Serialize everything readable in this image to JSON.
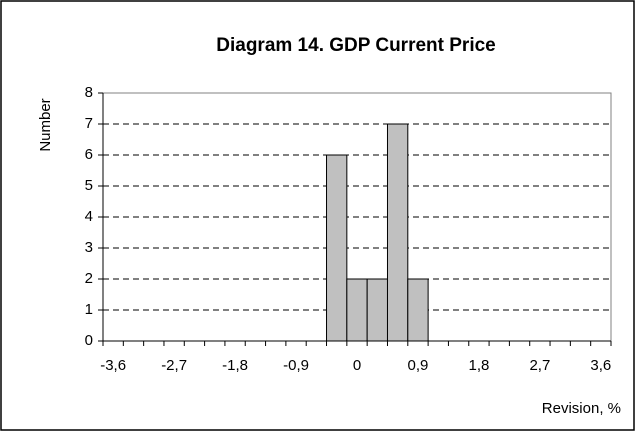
{
  "chart_data": {
    "type": "bar",
    "title": "Diagram 14.  GDP Current Price",
    "x_label": "Revision, %",
    "y_label": "Number",
    "categories": [
      "-3,6",
      null,
      null,
      "-2,7",
      null,
      null,
      "-1,8",
      null,
      null,
      "-0,9",
      null,
      null,
      "0",
      null,
      null,
      "0,9",
      null,
      null,
      "1,8",
      null,
      null,
      "2,7",
      null,
      null,
      "3,6"
    ],
    "values": [
      0,
      0,
      0,
      0,
      0,
      0,
      0,
      0,
      0,
      0,
      0,
      6,
      2,
      2,
      7,
      2,
      0,
      0,
      0,
      0,
      0,
      0,
      0,
      0,
      0
    ],
    "color": "#c0c0c0",
    "ylim": [
      0,
      8
    ],
    "yticks": [
      0,
      1,
      2,
      3,
      4,
      5,
      6,
      7,
      8
    ],
    "grid": true
  }
}
